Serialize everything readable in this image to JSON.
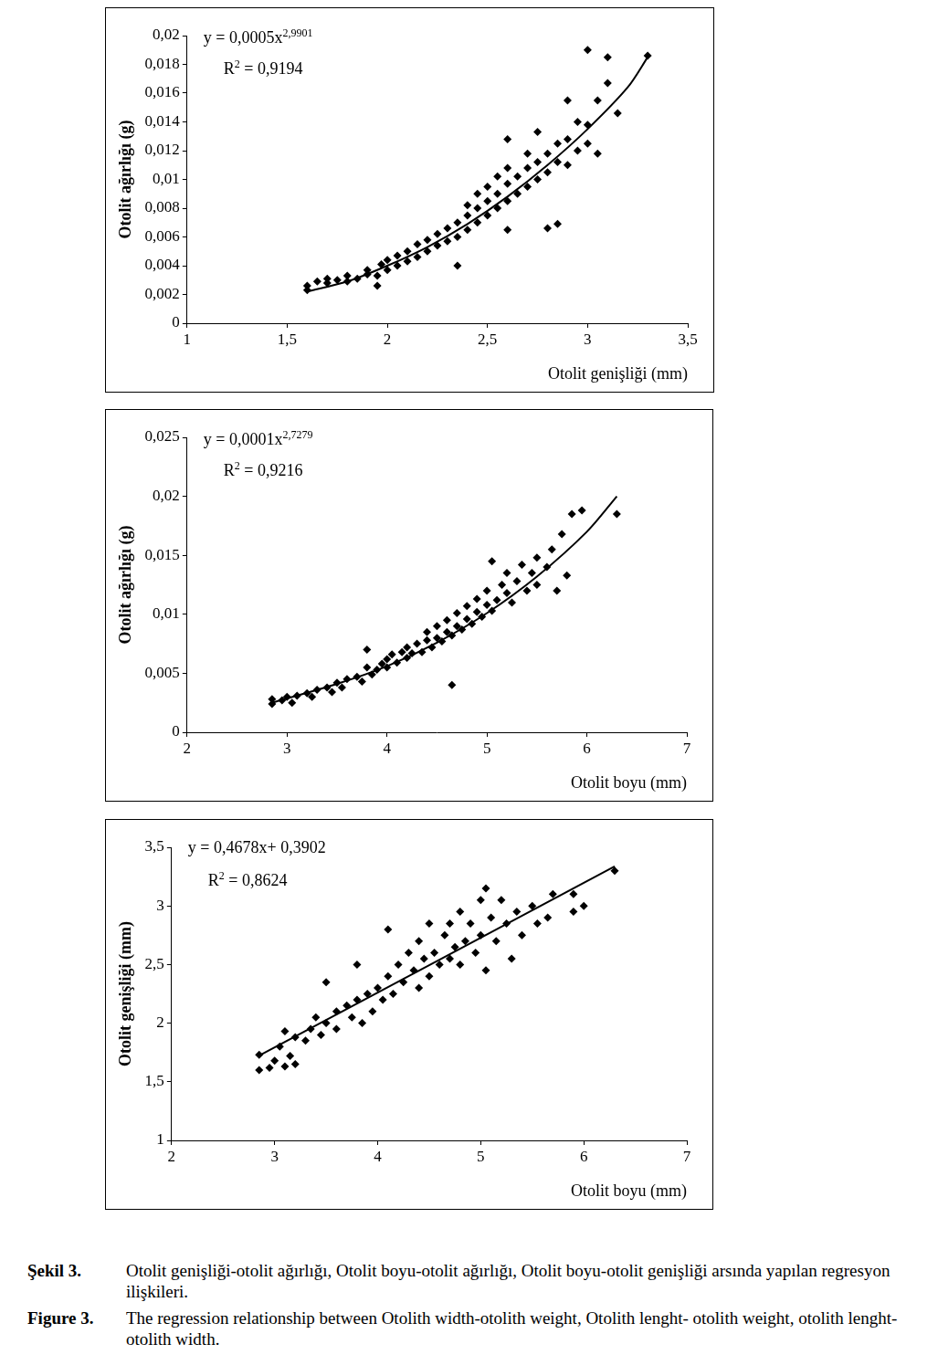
{
  "chart_data": [
    {
      "type": "scatter",
      "x_label": "Otolit genişliği (mm)",
      "y_label": "Otolit ağırlığı (g)",
      "equation": [
        "y = 0,0005x",
        "2,9901"
      ],
      "r_squared": [
        "R",
        "2",
        " = 0,9194"
      ],
      "grid": false,
      "xlim": [
        1,
        3.5
      ],
      "xticks": [
        1,
        {
          "value": 1.5,
          "label": "1,5"
        },
        2,
        {
          "value": 2.5,
          "label": "2,5"
        },
        3,
        {
          "value": 3.5,
          "label": "3,5"
        }
      ],
      "ylim": [
        0,
        0.02
      ],
      "yticks": [
        0,
        {
          "value": 0.002,
          "label": "0,002"
        },
        {
          "value": 0.004,
          "label": "0,004"
        },
        {
          "value": 0.006,
          "label": "0,006"
        },
        {
          "value": 0.008,
          "label": "0,008"
        },
        {
          "value": 0.01,
          "label": "0,01"
        },
        {
          "value": 0.012,
          "label": "0,012"
        },
        {
          "value": 0.014,
          "label": "0,014"
        },
        {
          "value": 0.016,
          "label": "0,016"
        },
        {
          "value": 0.018,
          "label": "0,018"
        },
        {
          "value": 0.02,
          "label": "0,02"
        }
      ],
      "series": [
        {
          "type": "scatter",
          "marker": "diamond",
          "color": "#000000",
          "x": [
            1.6,
            1.6,
            1.65,
            1.7,
            1.7,
            1.75,
            1.8,
            1.8,
            1.85,
            1.9,
            1.9,
            1.95,
            1.95,
            1.97,
            2.0,
            2.0,
            2.05,
            2.05,
            2.1,
            2.1,
            2.15,
            2.15,
            2.2,
            2.2,
            2.25,
            2.25,
            2.3,
            2.3,
            2.35,
            2.35,
            2.35,
            2.4,
            2.4,
            2.4,
            2.45,
            2.45,
            2.45,
            2.5,
            2.5,
            2.5,
            2.55,
            2.55,
            2.55,
            2.6,
            2.6,
            2.6,
            2.6,
            2.6,
            2.65,
            2.65,
            2.7,
            2.7,
            2.7,
            2.75,
            2.75,
            2.75,
            2.8,
            2.8,
            2.8,
            2.85,
            2.85,
            2.85,
            2.9,
            2.9,
            2.9,
            2.95,
            2.95,
            3.0,
            3.0,
            3.0,
            3.05,
            3.05,
            3.1,
            3.1,
            3.15,
            3.3
          ],
          "values": [
            0.0023,
            0.0026,
            0.0029,
            0.0028,
            0.0031,
            0.003,
            0.0029,
            0.0033,
            0.0031,
            0.0034,
            0.0037,
            0.0033,
            0.0026,
            0.0041,
            0.0037,
            0.0044,
            0.004,
            0.0047,
            0.0043,
            0.005,
            0.0046,
            0.0055,
            0.005,
            0.0058,
            0.0054,
            0.0062,
            0.0057,
            0.0066,
            0.006,
            0.007,
            0.004,
            0.0065,
            0.0075,
            0.0082,
            0.007,
            0.008,
            0.009,
            0.0075,
            0.0085,
            0.0095,
            0.008,
            0.009,
            0.0102,
            0.0085,
            0.0097,
            0.0108,
            0.0065,
            0.0128,
            0.009,
            0.0102,
            0.0095,
            0.0108,
            0.0118,
            0.01,
            0.0112,
            0.0133,
            0.0105,
            0.0118,
            0.0066,
            0.0069,
            0.0112,
            0.0125,
            0.011,
            0.0128,
            0.0155,
            0.012,
            0.014,
            0.0125,
            0.0138,
            0.019,
            0.0118,
            0.0155,
            0.0167,
            0.0185,
            0.0146,
            0.0186
          ]
        },
        {
          "type": "line",
          "line_style": "solid",
          "color": "#000000",
          "x": [
            1.6,
            1.8,
            2.0,
            2.2,
            2.4,
            2.6,
            2.8,
            3.0,
            3.2,
            3.3
          ],
          "values": [
            0.0022,
            0.0029,
            0.004,
            0.0053,
            0.0069,
            0.0088,
            0.011,
            0.0135,
            0.0164,
            0.0185
          ]
        }
      ]
    },
    {
      "type": "scatter",
      "x_label": "Otolit boyu (mm)",
      "y_label": "Otolit ağırlığı (g)",
      "equation": [
        "y = 0,0001x",
        "2,7279"
      ],
      "r_squared": [
        "R",
        "2",
        " = 0,9216"
      ],
      "grid": false,
      "xlim": [
        2,
        7
      ],
      "xticks": [
        2,
        3,
        4,
        5,
        6,
        7
      ],
      "ylim": [
        0,
        0.025
      ],
      "yticks": [
        0,
        {
          "value": 0.005,
          "label": "0,005"
        },
        {
          "value": 0.01,
          "label": "0,01"
        },
        {
          "value": 0.015,
          "label": "0,015"
        },
        {
          "value": 0.02,
          "label": "0,02"
        },
        {
          "value": 0.025,
          "label": "0,025"
        }
      ],
      "series": [
        {
          "type": "scatter",
          "marker": "diamond",
          "color": "#000000",
          "x": [
            2.85,
            2.85,
            2.95,
            3.0,
            3.05,
            3.1,
            3.2,
            3.25,
            3.3,
            3.4,
            3.45,
            3.5,
            3.55,
            3.6,
            3.7,
            3.75,
            3.8,
            3.8,
            3.85,
            3.9,
            3.95,
            4.0,
            4.0,
            4.05,
            4.1,
            4.15,
            4.2,
            4.2,
            4.25,
            4.3,
            4.35,
            4.4,
            4.4,
            4.45,
            4.5,
            4.5,
            4.55,
            4.6,
            4.6,
            4.65,
            4.65,
            4.7,
            4.7,
            4.75,
            4.8,
            4.8,
            4.85,
            4.9,
            4.9,
            4.95,
            5.0,
            5.0,
            5.05,
            5.05,
            5.1,
            5.15,
            5.2,
            5.2,
            5.25,
            5.3,
            5.35,
            5.4,
            5.45,
            5.5,
            5.5,
            5.6,
            5.65,
            5.7,
            5.75,
            5.8,
            5.85,
            5.95,
            6.3
          ],
          "values": [
            0.0024,
            0.0028,
            0.0027,
            0.003,
            0.0025,
            0.0031,
            0.0033,
            0.003,
            0.0036,
            0.0038,
            0.0034,
            0.0042,
            0.0038,
            0.0045,
            0.0047,
            0.0043,
            0.0055,
            0.007,
            0.0049,
            0.0053,
            0.0058,
            0.0055,
            0.0062,
            0.0066,
            0.0059,
            0.0068,
            0.0063,
            0.0072,
            0.0067,
            0.0075,
            0.0068,
            0.0078,
            0.0085,
            0.0072,
            0.008,
            0.009,
            0.0077,
            0.0085,
            0.0095,
            0.004,
            0.0082,
            0.009,
            0.0101,
            0.0087,
            0.0096,
            0.0107,
            0.0092,
            0.0102,
            0.0113,
            0.0098,
            0.0108,
            0.012,
            0.0103,
            0.0145,
            0.0112,
            0.0125,
            0.0118,
            0.0135,
            0.011,
            0.0128,
            0.0142,
            0.012,
            0.0135,
            0.0148,
            0.0125,
            0.014,
            0.0155,
            0.012,
            0.0168,
            0.0133,
            0.0185,
            0.0188,
            0.0185
          ]
        },
        {
          "type": "line",
          "line_style": "solid",
          "color": "#000000",
          "x": [
            2.85,
            3.5,
            4.0,
            4.5,
            5.0,
            5.5,
            6.0,
            6.3
          ],
          "values": [
            0.0025,
            0.0041,
            0.0056,
            0.0076,
            0.0101,
            0.0132,
            0.017,
            0.02
          ]
        }
      ]
    },
    {
      "type": "scatter",
      "x_label": "Otolit boyu (mm)",
      "y_label": "Otolit genişliği (mm)",
      "equation": [
        "y = 0,4678x+ 0,3902",
        ""
      ],
      "r_squared": [
        "R",
        "2",
        " = 0,8624"
      ],
      "grid": false,
      "xlim": [
        2,
        7
      ],
      "xticks": [
        2,
        3,
        4,
        5,
        6,
        7
      ],
      "ylim": [
        1,
        3.5
      ],
      "yticks": [
        1,
        {
          "value": 1.5,
          "label": "1,5"
        },
        2,
        {
          "value": 2.5,
          "label": "2,5"
        },
        3,
        {
          "value": 3.5,
          "label": "3,5"
        }
      ],
      "series": [
        {
          "type": "scatter",
          "marker": "diamond",
          "color": "#000000",
          "x": [
            2.85,
            2.85,
            2.95,
            3.0,
            3.05,
            3.1,
            3.1,
            3.15,
            3.2,
            3.2,
            3.3,
            3.35,
            3.4,
            3.45,
            3.5,
            3.5,
            3.6,
            3.6,
            3.7,
            3.75,
            3.8,
            3.8,
            3.85,
            3.9,
            3.95,
            4.0,
            4.05,
            4.1,
            4.1,
            4.15,
            4.2,
            4.25,
            4.3,
            4.35,
            4.4,
            4.4,
            4.45,
            4.5,
            4.5,
            4.55,
            4.6,
            4.65,
            4.7,
            4.7,
            4.75,
            4.8,
            4.8,
            4.85,
            4.9,
            4.95,
            5.0,
            5.0,
            5.05,
            5.05,
            5.1,
            5.15,
            5.2,
            5.25,
            5.3,
            5.35,
            5.4,
            5.5,
            5.55,
            5.65,
            5.7,
            5.9,
            5.9,
            6.0,
            6.3
          ],
          "values": [
            1.6,
            1.73,
            1.62,
            1.68,
            1.8,
            1.93,
            1.63,
            1.72,
            1.65,
            1.88,
            1.85,
            1.95,
            2.05,
            1.9,
            2.35,
            2.0,
            2.1,
            1.95,
            2.15,
            2.05,
            2.5,
            2.2,
            2.0,
            2.25,
            2.1,
            2.3,
            2.2,
            2.8,
            2.4,
            2.25,
            2.5,
            2.35,
            2.6,
            2.45,
            2.3,
            2.7,
            2.55,
            2.85,
            2.4,
            2.6,
            2.5,
            2.75,
            2.85,
            2.55,
            2.65,
            2.95,
            2.5,
            2.7,
            2.85,
            2.6,
            3.05,
            2.75,
            3.15,
            2.45,
            2.9,
            2.7,
            3.05,
            2.85,
            2.55,
            2.95,
            2.75,
            3.0,
            2.85,
            2.9,
            3.1,
            3.1,
            2.95,
            3.0,
            3.3
          ]
        },
        {
          "type": "line",
          "line_style": "solid",
          "color": "#000000",
          "x": [
            2.85,
            6.3
          ],
          "values": [
            1.723,
            3.337
          ]
        }
      ]
    }
  ],
  "caption": [
    {
      "label": "Şekil 3.",
      "text": "Otolit genişliği-otolit ağırlığı, Otolit boyu-otolit ağırlığı, Otolit boyu-otolit genişliği arsında yapılan regresyon ilişkileri."
    },
    {
      "label": "Figure 3.",
      "text": "The regression relationship between Otolith width-otolith weight, Otolith lenght- otolith weight, otolith lenght- otolith width."
    }
  ]
}
